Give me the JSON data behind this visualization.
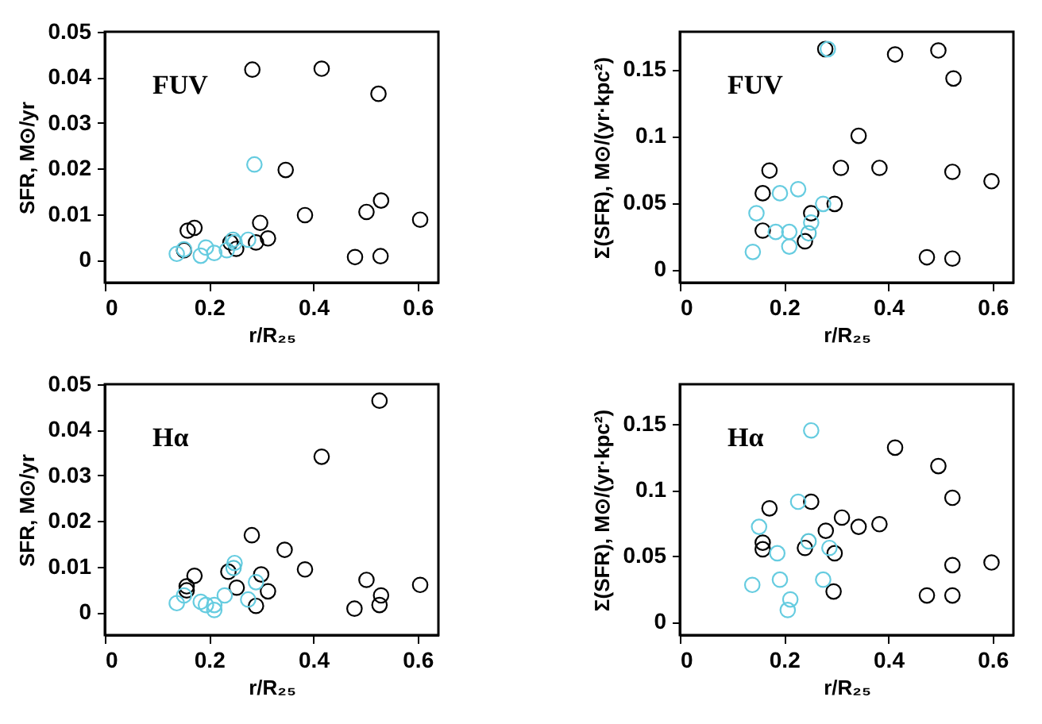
{
  "chart_data": [
    {
      "type": "scatter",
      "annotations": [
        "FUV"
      ],
      "xlabel": "r/R₂₅",
      "ylabel": "SFR, M⊙/yr",
      "xlim": [
        0,
        0.64
      ],
      "ylim": [
        -0.005,
        0.05
      ],
      "xticks": [
        0,
        0.2,
        0.4,
        0.6
      ],
      "yticks": [
        0,
        0.01,
        0.02,
        0.03,
        0.04,
        0.05
      ],
      "grid": false,
      "marker": "circle",
      "series": [
        {
          "color": "#000000",
          "x": [
            0.283,
            0.416,
            0.525,
            0.347,
            0.298,
            0.605,
            0.241
          ],
          "values": [
            0.0417,
            0.0419,
            0.0364,
            0.0197,
            0.0081,
            0.0088,
            0.0038
          ]
        },
        {
          "color": "#000000",
          "x": [
            0.159,
            0.172,
            0.152,
            0.252,
            0.29,
            0.313,
            0.384,
            0.502,
            0.53,
            0.48,
            0.529
          ],
          "values": [
            0.0064,
            0.007,
            0.0021,
            0.0024,
            0.0038,
            0.0047,
            0.0098,
            0.0105,
            0.013,
            0.0006,
            0.0008
          ]
        },
        {
          "color": "#66cce0",
          "x": [
            0.287,
            0.138,
            0.152,
            0.184,
            0.194,
            0.21,
            0.234,
            0.275,
            0.249
          ],
          "values": [
            0.0209,
            0.0013,
            0.0023,
            0.0009,
            0.0027,
            0.0015,
            0.0021,
            0.0044,
            0.0038
          ]
        },
        {
          "color": "#5bc4d6",
          "x": [
            0.246
          ],
          "values": [
            0.0044
          ]
        }
      ]
    },
    {
      "type": "scatter",
      "annotations": [
        "FUV"
      ],
      "xlabel": "r/R₂₅",
      "ylabel": "Σ(SFR), M⊙/(yr·kpc²)",
      "xlim": [
        0,
        0.64
      ],
      "ylim": [
        -0.01,
        0.178
      ],
      "xticks": [
        0,
        0.2,
        0.4,
        0.6
      ],
      "yticks": [
        0,
        0.05,
        {
          "value": 0.1,
          "label": "0.1"
        },
        0.15
      ],
      "grid": false,
      "marker": "circle",
      "series": [
        {
          "color": "#000000",
          "x": [
            0.279,
            0.413,
            0.343,
            0.523,
            0.598,
            0.297,
            0.24
          ],
          "values": [
            0.165,
            0.161,
            0.1,
            0.073,
            0.066,
            0.049,
            0.021
          ]
        },
        {
          "color": "#000000",
          "x": [
            0.496,
            0.525,
            0.309,
            0.383,
            0.172,
            0.159,
            0.159,
            0.252,
            0.474,
            0.523
          ],
          "values": [
            0.164,
            0.143,
            0.076,
            0.076,
            0.074,
            0.057,
            0.029,
            0.042,
            0.009,
            0.008
          ]
        },
        {
          "color": "#66cce0",
          "x": [
            0.284,
            0.14,
            0.147,
            0.192,
            0.227,
            0.184,
            0.21,
            0.21,
            0.252,
            0.275
          ],
          "values": [
            0.165,
            0.013,
            0.042,
            0.057,
            0.06,
            0.028,
            0.028,
            0.017,
            0.035,
            0.049
          ]
        },
        {
          "color": "#5bc4d6",
          "x": [
            0.247
          ],
          "values": [
            0.027
          ]
        }
      ]
    },
    {
      "type": "scatter",
      "annotations": [
        "Hα"
      ],
      "xlabel": "r/R₂₅",
      "ylabel": "SFR, M⊙/yr",
      "xlim": [
        0,
        0.64
      ],
      "ylim": [
        -0.005,
        0.05
      ],
      "xticks": [
        0,
        0.2,
        0.4,
        0.6
      ],
      "yticks": [
        0,
        0.01,
        0.02,
        0.03,
        0.04,
        0.05
      ],
      "grid": false,
      "marker": "circle",
      "series": [
        {
          "color": "#000000",
          "x": [
            0.527,
            0.416,
            0.282,
            0.345,
            0.237,
            0.3,
            0.605
          ],
          "values": [
            0.0464,
            0.0341,
            0.0169,
            0.0137,
            0.0089,
            0.0083,
            0.006
          ]
        },
        {
          "color": "#000000",
          "x": [
            0.172,
            0.157,
            0.157,
            0.253,
            0.29,
            0.313,
            0.384,
            0.502,
            0.53,
            0.527,
            0.479
          ],
          "values": [
            0.008,
            0.0057,
            0.0048,
            0.0054,
            0.0014,
            0.0046,
            0.0094,
            0.0071,
            0.0037,
            0.0016,
            0.0008
          ]
        },
        {
          "color": "#66cce0",
          "x": [
            0.249,
            0.138,
            0.152,
            0.184,
            0.194,
            0.21,
            0.21,
            0.23,
            0.275,
            0.29
          ],
          "values": [
            0.0108,
            0.002,
            0.0037,
            0.0023,
            0.0016,
            0.0005,
            0.0016,
            0.0037,
            0.0028,
            0.0066
          ]
        },
        {
          "color": "#5bc4d6",
          "x": [
            0.247
          ],
          "values": [
            0.0097
          ]
        }
      ]
    },
    {
      "type": "scatter",
      "annotations": [
        "Hα"
      ],
      "xlabel": "r/R₂₅",
      "ylabel": "Σ(SFR), M⊙/(yr·kpc²)",
      "xlim": [
        0,
        0.64
      ],
      "ylim": [
        -0.01,
        0.18
      ],
      "xticks": [
        0,
        0.2,
        0.4,
        0.6
      ],
      "yticks": [
        0,
        0.05,
        {
          "value": 0.1,
          "label": "0.1"
        },
        0.15
      ],
      "grid": false,
      "marker": "circle",
      "series": [
        {
          "color": "#000000",
          "x": [
            0.413,
            0.523,
            0.598,
            0.343,
            0.28,
            0.24,
            0.297
          ],
          "values": [
            0.132,
            0.094,
            0.045,
            0.072,
            0.069,
            0.056,
            0.052
          ]
        },
        {
          "color": "#000000",
          "x": [
            0.496,
            0.252,
            0.172,
            0.311,
            0.383,
            0.159,
            0.159,
            0.523,
            0.474,
            0.523,
            0.295
          ],
          "values": [
            0.118,
            0.091,
            0.086,
            0.079,
            0.074,
            0.06,
            0.055,
            0.043,
            0.02,
            0.02,
            0.023
          ]
        },
        {
          "color": "#66cce0",
          "x": [
            0.252,
            0.227,
            0.152,
            0.187,
            0.192,
            0.139,
            0.212,
            0.207,
            0.275,
            0.287
          ],
          "values": [
            0.145,
            0.091,
            0.072,
            0.052,
            0.032,
            0.028,
            0.017,
            0.009,
            0.032,
            0.056
          ]
        },
        {
          "color": "#5bc4d6",
          "x": [
            0.247
          ],
          "values": [
            0.061
          ]
        }
      ]
    }
  ]
}
